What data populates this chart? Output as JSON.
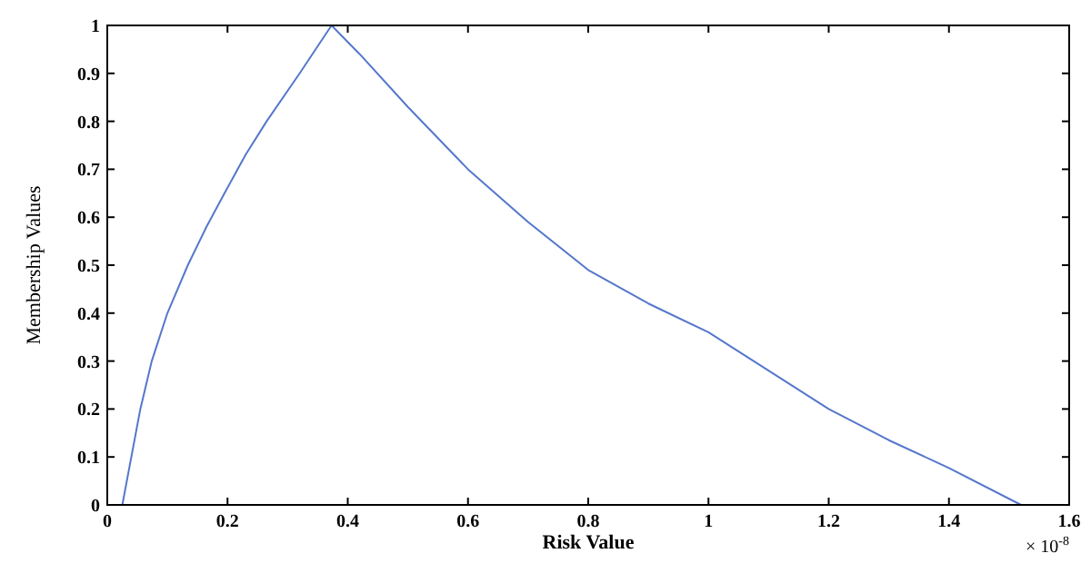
{
  "chart_data": {
    "type": "line",
    "xlabel": "Risk Value",
    "ylabel": "Membership Values",
    "annotations": [
      "× 10$^{-8}$"
    ],
    "xlim": [
      0,
      1.6
    ],
    "ylim": [
      0,
      1
    ],
    "xticks": [
      0,
      0.2,
      0.4,
      0.6,
      0.8,
      1,
      1.2,
      1.4,
      1.6
    ],
    "yticks": [
      0,
      0.1,
      0.2,
      0.3,
      0.4,
      0.5,
      0.6,
      0.7,
      0.8,
      0.9,
      1
    ],
    "grid": false,
    "marker": "none",
    "line_style": "solid",
    "series": [
      {
        "color": "#5577cc",
        "x": [
          0.025,
          0.04,
          0.055,
          0.074,
          0.1,
          0.134,
          0.165,
          0.195,
          0.23,
          0.265,
          0.32,
          0.373,
          0.42,
          0.5,
          0.6,
          0.7,
          0.8,
          0.9,
          1.0,
          1.1,
          1.2,
          1.3,
          1.4,
          1.52
        ],
        "values": [
          0,
          0.1,
          0.2,
          0.3,
          0.4,
          0.5,
          0.58,
          0.65,
          0.73,
          0.8,
          0.9,
          1,
          0.94,
          0.83,
          0.7,
          0.59,
          0.49,
          0.42,
          0.36,
          0.28,
          0.2,
          0.135,
          0.077,
          0
        ]
      }
    ]
  }
}
